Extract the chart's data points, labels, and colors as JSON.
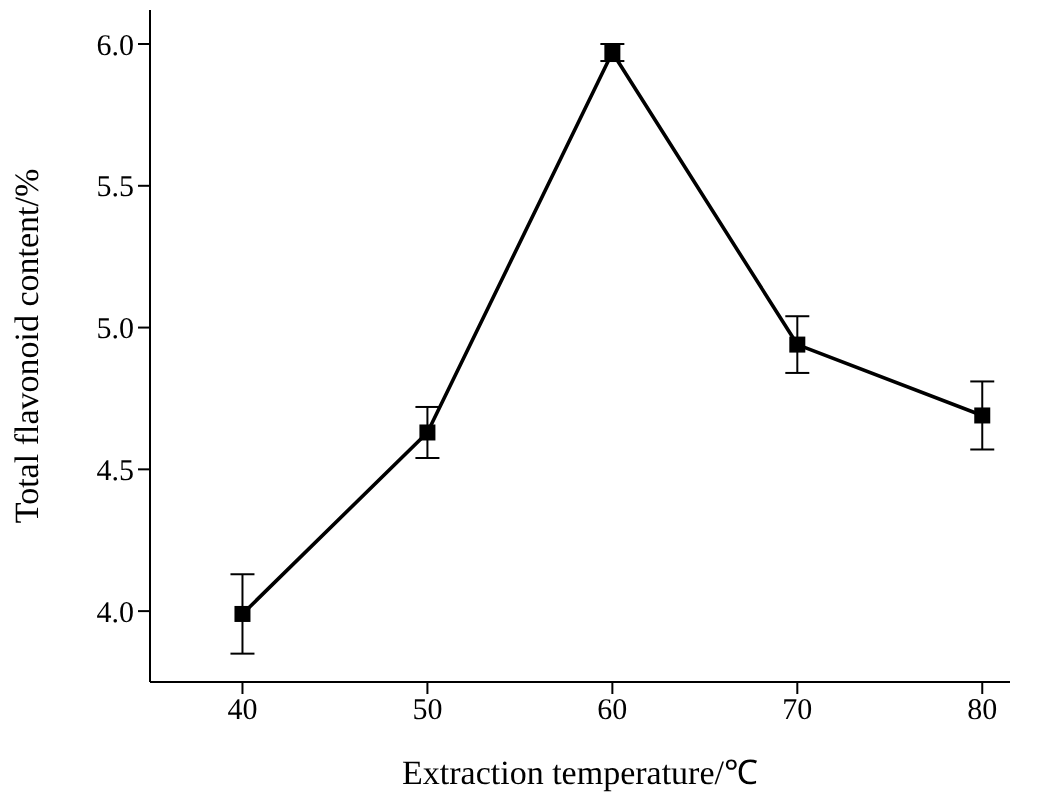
{
  "chart_data": {
    "type": "line",
    "xlabel": "Extraction temperature/℃",
    "ylabel": "Total flavonoid content/%",
    "x": [
      40,
      50,
      60,
      70,
      80
    ],
    "series": [
      {
        "color": "#000000",
        "values": [
          3.99,
          4.63,
          5.97,
          4.94,
          4.69
        ],
        "errors": [
          0.14,
          0.09,
          0.03,
          0.1,
          0.12
        ]
      }
    ],
    "xlim": [
      35,
      81.5
    ],
    "xticks": [
      40,
      50,
      60,
      70,
      80
    ],
    "ylim": [
      3.75,
      6.12
    ],
    "yticks": [
      {
        "value": 4,
        "label": "4.0"
      },
      {
        "value": 4.5,
        "label": "4.5"
      },
      {
        "value": 5,
        "label": "5.0"
      },
      {
        "value": 5.5,
        "label": "5.5"
      },
      {
        "value": 6,
        "label": "6.0"
      }
    ],
    "grid": false,
    "legend": false,
    "marker": "square",
    "line_style": "solid"
  }
}
